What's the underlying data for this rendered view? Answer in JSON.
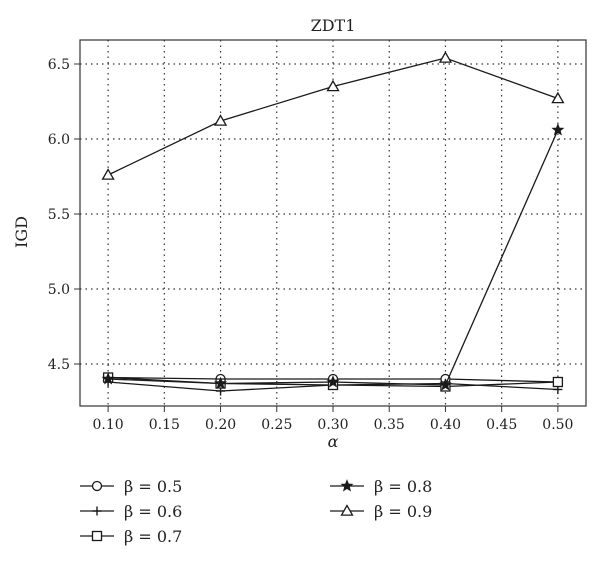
{
  "chart_data": {
    "type": "line",
    "title": "ZDT1",
    "xlabel": "α",
    "ylabel": "IGD",
    "x": [
      0.1,
      0.2,
      0.3,
      0.4,
      0.5
    ],
    "x_tick_labels": [
      "0.10",
      "0.15",
      "0.20",
      "0.25",
      "0.30",
      "0.35",
      "0.40",
      "0.45",
      "0.50"
    ],
    "x_ticks": [
      0.1,
      0.15,
      0.2,
      0.25,
      0.3,
      0.35,
      0.4,
      0.45,
      0.5
    ],
    "y_tick_labels": [
      "4.5",
      "5.0",
      "5.5",
      "6.0",
      "6.5"
    ],
    "y_ticks": [
      4.5,
      5.0,
      5.5,
      6.0,
      6.5
    ],
    "xlim": [
      0.075,
      0.525
    ],
    "ylim": [
      4.22,
      6.66
    ],
    "grid": true,
    "legend_position": "bottom",
    "series": [
      {
        "name": "β = 0.5",
        "marker": "circle",
        "values": [
          4.41,
          4.4,
          4.4,
          4.4,
          4.38
        ]
      },
      {
        "name": "β = 0.6",
        "marker": "plus",
        "values": [
          4.38,
          4.32,
          4.36,
          4.37,
          4.33
        ]
      },
      {
        "name": "β = 0.7",
        "marker": "square",
        "values": [
          4.41,
          4.37,
          4.36,
          4.35,
          4.38
        ]
      },
      {
        "name": "β = 0.8",
        "marker": "star",
        "values": [
          4.4,
          4.37,
          4.38,
          4.36,
          6.06
        ]
      },
      {
        "name": "β = 0.9",
        "marker": "triangle",
        "values": [
          5.76,
          6.12,
          6.35,
          6.54,
          6.27
        ]
      }
    ],
    "colors": {
      "line": "#1a1a1a",
      "grid": "#333333",
      "frame": "#333333"
    }
  }
}
